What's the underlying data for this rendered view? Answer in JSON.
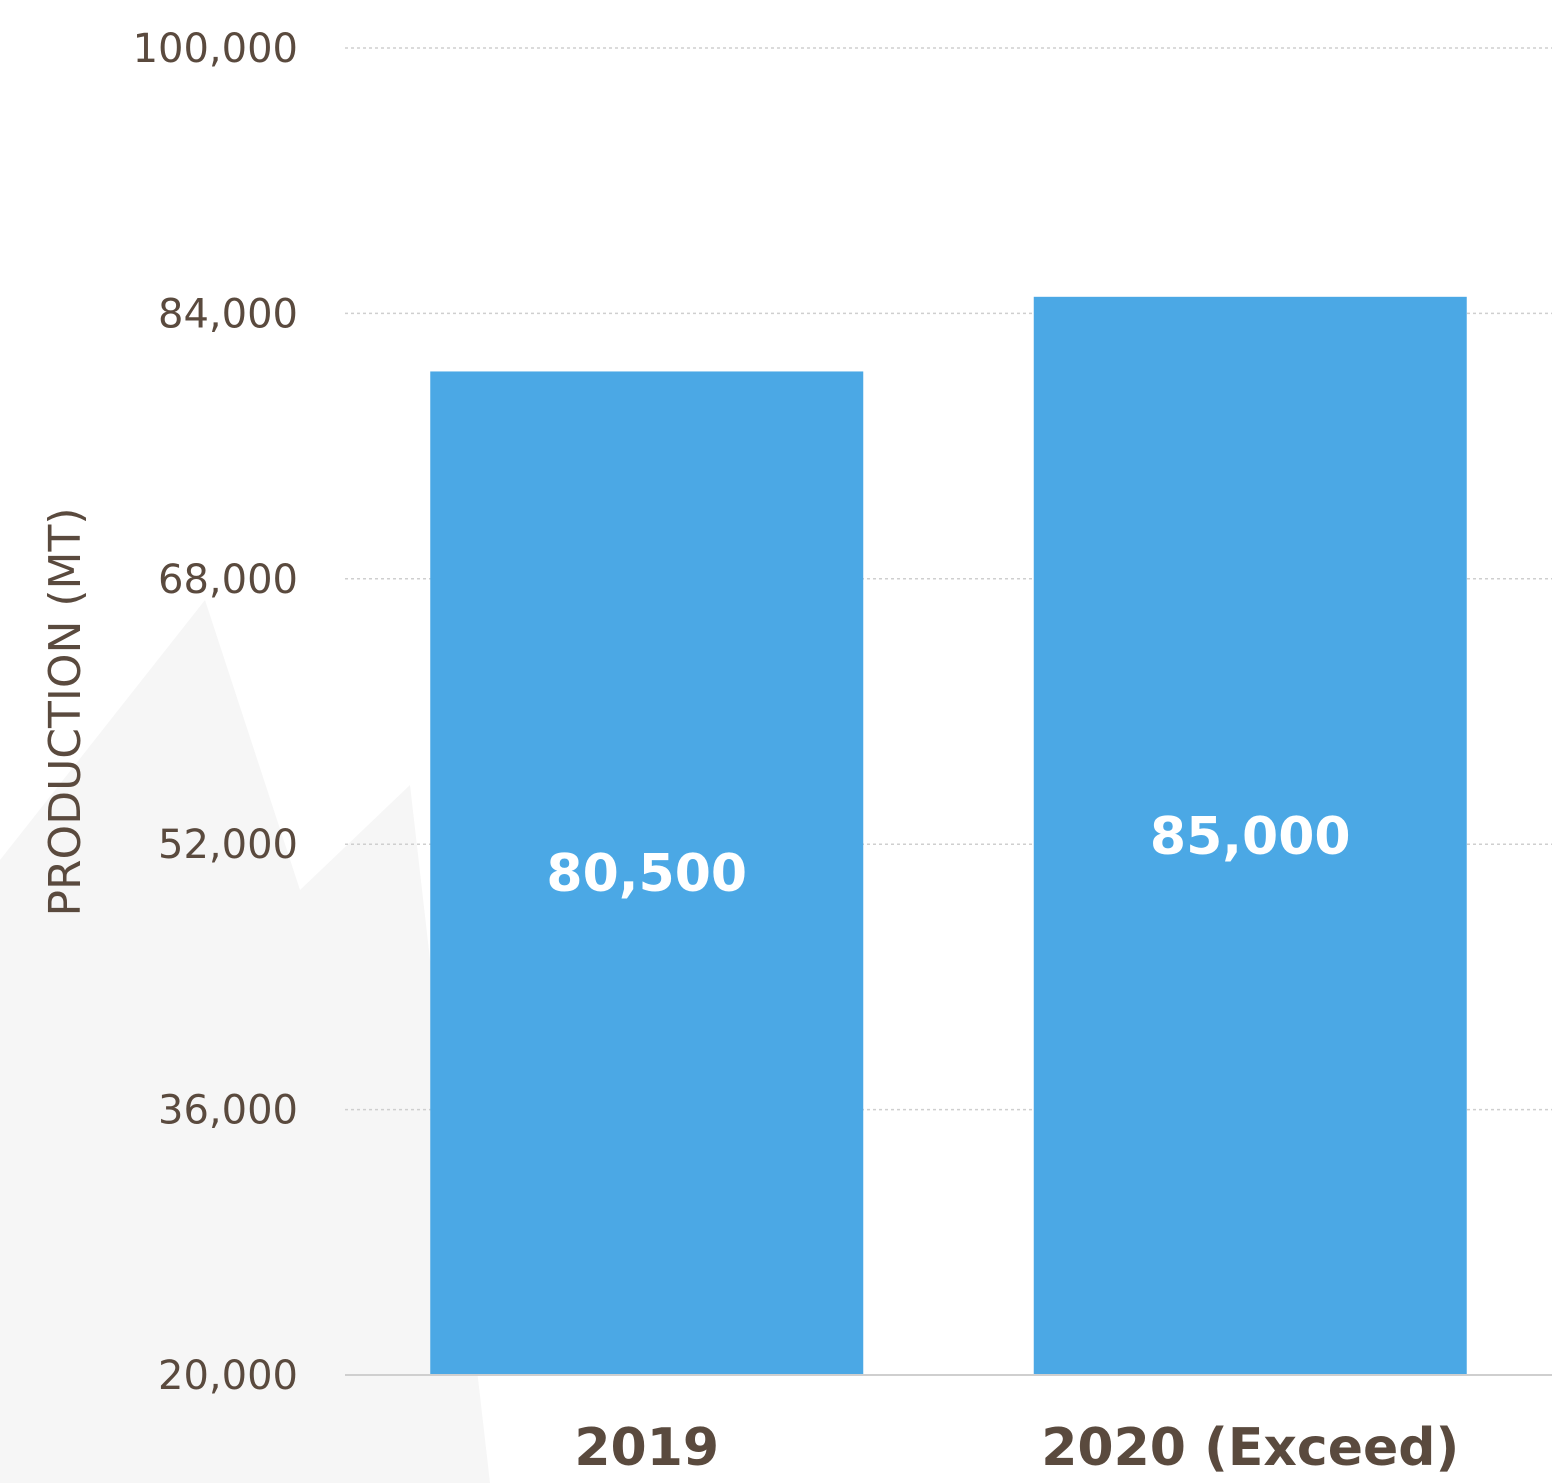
{
  "chart_data": {
    "type": "bar",
    "categories": [
      "2019",
      "2020 (Exceed)"
    ],
    "values": [
      80500,
      85000
    ],
    "data_labels": [
      "80,500",
      "85,000"
    ],
    "ylabel": "PRODUCTION (MT)",
    "ylim": [
      20000,
      100000
    ],
    "yticks": [
      20000,
      36000,
      52000,
      68000,
      84000,
      100000
    ],
    "ytick_labels": [
      "20,000",
      "36,000",
      "52,000",
      "68,000",
      "84,000",
      "100,000"
    ],
    "grid": true,
    "legend": "none",
    "colors": {
      "bar": "#4ba8e5",
      "text": "#5a4a3e",
      "grid": "#cfcfcf",
      "background_shape": "#f5f5f5"
    }
  }
}
